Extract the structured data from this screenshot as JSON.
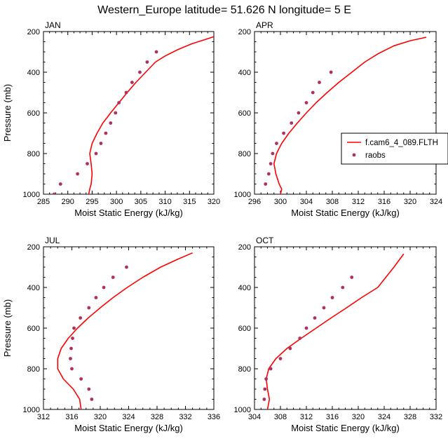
{
  "figure_title": "Western_Europe  latitude= 51.626 N longitude= 5 E",
  "colors": {
    "model": "#ff0000",
    "obs": "#b03060",
    "axes": "#000000",
    "background": "#ffffff"
  },
  "chart_data": [
    {
      "type": "line",
      "panel": "JAN",
      "title": "JAN",
      "xlabel": "Moist Static Energy (kJ/kg)",
      "ylabel": "Pressure (mb)",
      "xlim": [
        285,
        320
      ],
      "ylim": [
        1000,
        200
      ],
      "xticks": [
        285,
        290,
        295,
        300,
        305,
        310,
        315,
        320
      ],
      "yticks": [
        200,
        400,
        600,
        800,
        1000
      ],
      "model": {
        "name": "f.cam6_4_089.FLTH",
        "x": [
          294.3,
          294.5,
          294.8,
          295.0,
          294.8,
          294.5,
          295.0,
          296.0,
          297.2,
          298.8,
          300.5,
          302.2,
          304.0,
          306.0,
          308.0,
          310.0,
          312.5,
          315.5,
          318.5,
          320.0
        ],
        "y": [
          1000,
          975,
          950,
          900,
          850,
          800,
          750,
          700,
          650,
          600,
          550,
          500,
          450,
          400,
          350,
          320,
          290,
          260,
          237,
          225
        ]
      },
      "obs": {
        "name": "raobs",
        "x": [
          287.2,
          288.5,
          292.0,
          294.0,
          295.8,
          296.8,
          297.8,
          298.8,
          299.8,
          300.5,
          302.0,
          303.2,
          304.8,
          306.3,
          308.2
        ],
        "y": [
          1000,
          950,
          900,
          850,
          800,
          750,
          700,
          650,
          600,
          550,
          500,
          450,
          400,
          350,
          300
        ]
      }
    },
    {
      "type": "line",
      "panel": "APR",
      "title": "APR",
      "xlabel": "Moist Static Energy (kJ/kg)",
      "ylabel": "",
      "xlim": [
        296,
        324
      ],
      "ylim": [
        1000,
        200
      ],
      "xticks": [
        296,
        300,
        304,
        308,
        312,
        316,
        320,
        324
      ],
      "yticks": [
        200,
        400,
        600,
        800,
        1000
      ],
      "model": {
        "name": "f.cam6_4_089.FLTH",
        "x": [
          300.0,
          300.2,
          299.8,
          299.3,
          299.0,
          299.4,
          300.2,
          301.3,
          302.6,
          304.0,
          305.5,
          307.2,
          309.0,
          311.0,
          313.0,
          315.0,
          317.5,
          320.0,
          322.5
        ],
        "y": [
          1000,
          975,
          950,
          900,
          850,
          800,
          750,
          700,
          650,
          600,
          550,
          500,
          450,
          400,
          350,
          310,
          270,
          245,
          228
        ]
      },
      "obs": {
        "name": "raobs",
        "x": [
          297.7,
          298.2,
          298.5,
          298.8,
          299.4,
          300.5,
          301.7,
          302.8,
          304.0,
          305.0,
          306.0,
          307.8
        ],
        "y": [
          950,
          900,
          850,
          800,
          750,
          700,
          650,
          600,
          550,
          500,
          450,
          400
        ]
      },
      "legend": {
        "position": "right",
        "entries": [
          "f.cam6_4_089.FLTH",
          "raobs"
        ]
      }
    },
    {
      "type": "line",
      "panel": "JUL",
      "title": "JUL",
      "xlabel": "Moist Static Energy (kJ/kg)",
      "ylabel": "Pressure (mb)",
      "xlim": [
        312,
        336
      ],
      "ylim": [
        1000,
        200
      ],
      "xticks": [
        312,
        316,
        320,
        324,
        328,
        332,
        336
      ],
      "yticks": [
        200,
        400,
        600,
        800,
        1000
      ],
      "model": {
        "name": "f.cam6_4_089.FLTH",
        "x": [
          317.3,
          317.1,
          316.2,
          314.8,
          314.0,
          314.0,
          314.5,
          315.5,
          316.8,
          318.3,
          320.0,
          321.8,
          323.8,
          326.0,
          328.5,
          331.0,
          333.0
        ],
        "y": [
          1000,
          950,
          900,
          850,
          800,
          750,
          700,
          650,
          600,
          550,
          500,
          450,
          400,
          350,
          300,
          260,
          230
        ]
      },
      "obs": {
        "name": "raobs",
        "x": [
          318.8,
          318.4,
          317.3,
          316.0,
          315.8,
          315.9,
          316.1,
          316.3,
          317.2,
          318.4,
          319.4,
          320.5,
          321.8,
          323.7
        ],
        "y": [
          950,
          900,
          850,
          800,
          750,
          700,
          650,
          600,
          550,
          500,
          450,
          400,
          350,
          300
        ]
      }
    },
    {
      "type": "line",
      "panel": "OCT",
      "title": "OCT",
      "xlabel": "Moist Static Energy (kJ/kg)",
      "ylabel": "",
      "xlim": [
        304,
        332
      ],
      "ylim": [
        1000,
        200
      ],
      "xticks": [
        304,
        308,
        312,
        316,
        320,
        324,
        328,
        332
      ],
      "yticks": [
        200,
        400,
        600,
        800,
        1000
      ],
      "model": {
        "name": "f.cam6_4_089.FLTH",
        "x": [
          306.0,
          306.3,
          306.0,
          305.8,
          306.2,
          307.3,
          309.0,
          311.2,
          313.5,
          315.8,
          318.2,
          320.5,
          323.0,
          325.5,
          327.0
        ],
        "y": [
          1000,
          950,
          900,
          850,
          800,
          750,
          700,
          650,
          600,
          550,
          500,
          450,
          400,
          300,
          235
        ]
      },
      "obs": {
        "name": "raobs",
        "x": [
          305.5,
          305.6,
          305.8,
          306.5,
          308.0,
          309.5,
          311.0,
          312.0,
          313.3,
          314.7,
          316.0,
          317.6,
          319.0
        ],
        "y": [
          950,
          900,
          850,
          800,
          750,
          700,
          650,
          600,
          550,
          500,
          450,
          400,
          350
        ]
      }
    }
  ]
}
